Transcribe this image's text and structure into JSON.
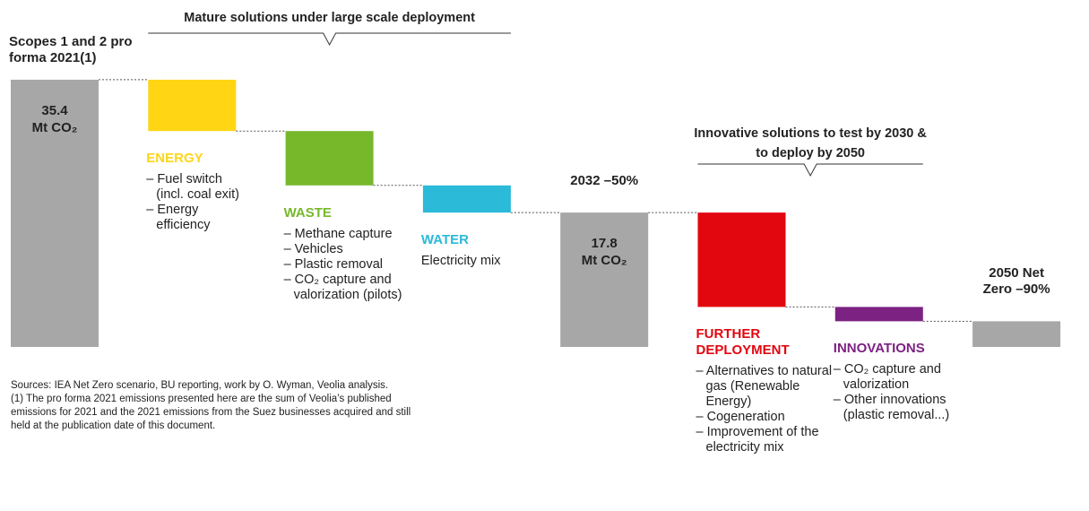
{
  "chart_data": {
    "type": "waterfall",
    "categories": [
      "Scopes 1 and 2 pro forma 2021(1)",
      "ENERGY",
      "WASTE",
      "WATER",
      "2032 –50%",
      "FURTHER DEPLOYMENT",
      "INNOVATIONS",
      "2050 Net Zero –90%"
    ],
    "measures": [
      "absolute",
      "relative",
      "relative",
      "relative",
      "absolute",
      "relative",
      "relative",
      "absolute"
    ],
    "values": [
      35.4,
      -6.8,
      -7.2,
      -3.6,
      17.8,
      -12.5,
      -1.9,
      3.4
    ],
    "value_labels": [
      "35.4",
      null,
      null,
      null,
      "17.8",
      null,
      null,
      null
    ],
    "unit": "Mt CO₂",
    "colors": [
      "#a7a7a7",
      "#ffd514",
      "#77b82a",
      "#2bbad8",
      "#a7a7a7",
      "#e2060f",
      "#7c2283",
      "#a7a7a7"
    ],
    "notes": [
      null,
      [
        "– Fuel switch (incl. coal exit)",
        "– Energy efficiency"
      ],
      [
        "– Methane capture",
        "– Vehicles",
        "– Plastic removal",
        "– CO₂ capture and valorization (pilots)"
      ],
      [
        "Electricity mix"
      ],
      null,
      [
        "– Alternatives to natural gas (Renewable Energy)",
        "– Cogeneration",
        "– Improvement of the electricity mix"
      ],
      [
        "– CO₂ capture and valorization",
        "– Other innovations (plastic removal...)"
      ],
      null
    ],
    "groups": [
      {
        "label": "Mature solutions under large scale deployment",
        "from": 1,
        "to": 3
      },
      {
        "label": "Innovative solutions to test by 2030 & to deploy by 2050",
        "from": 5,
        "to": 6
      }
    ],
    "source": "Sources: IEA Net Zero scenario, BU reporting, work by O. Wyman, Veolia analysis.",
    "footnote": "(1) The pro forma 2021 emissions presented here are the sum of Veolia’s published emissions for 2021 and the 2021 emissions from the Suez businesses acquired and still held at the publication date of this document."
  }
}
